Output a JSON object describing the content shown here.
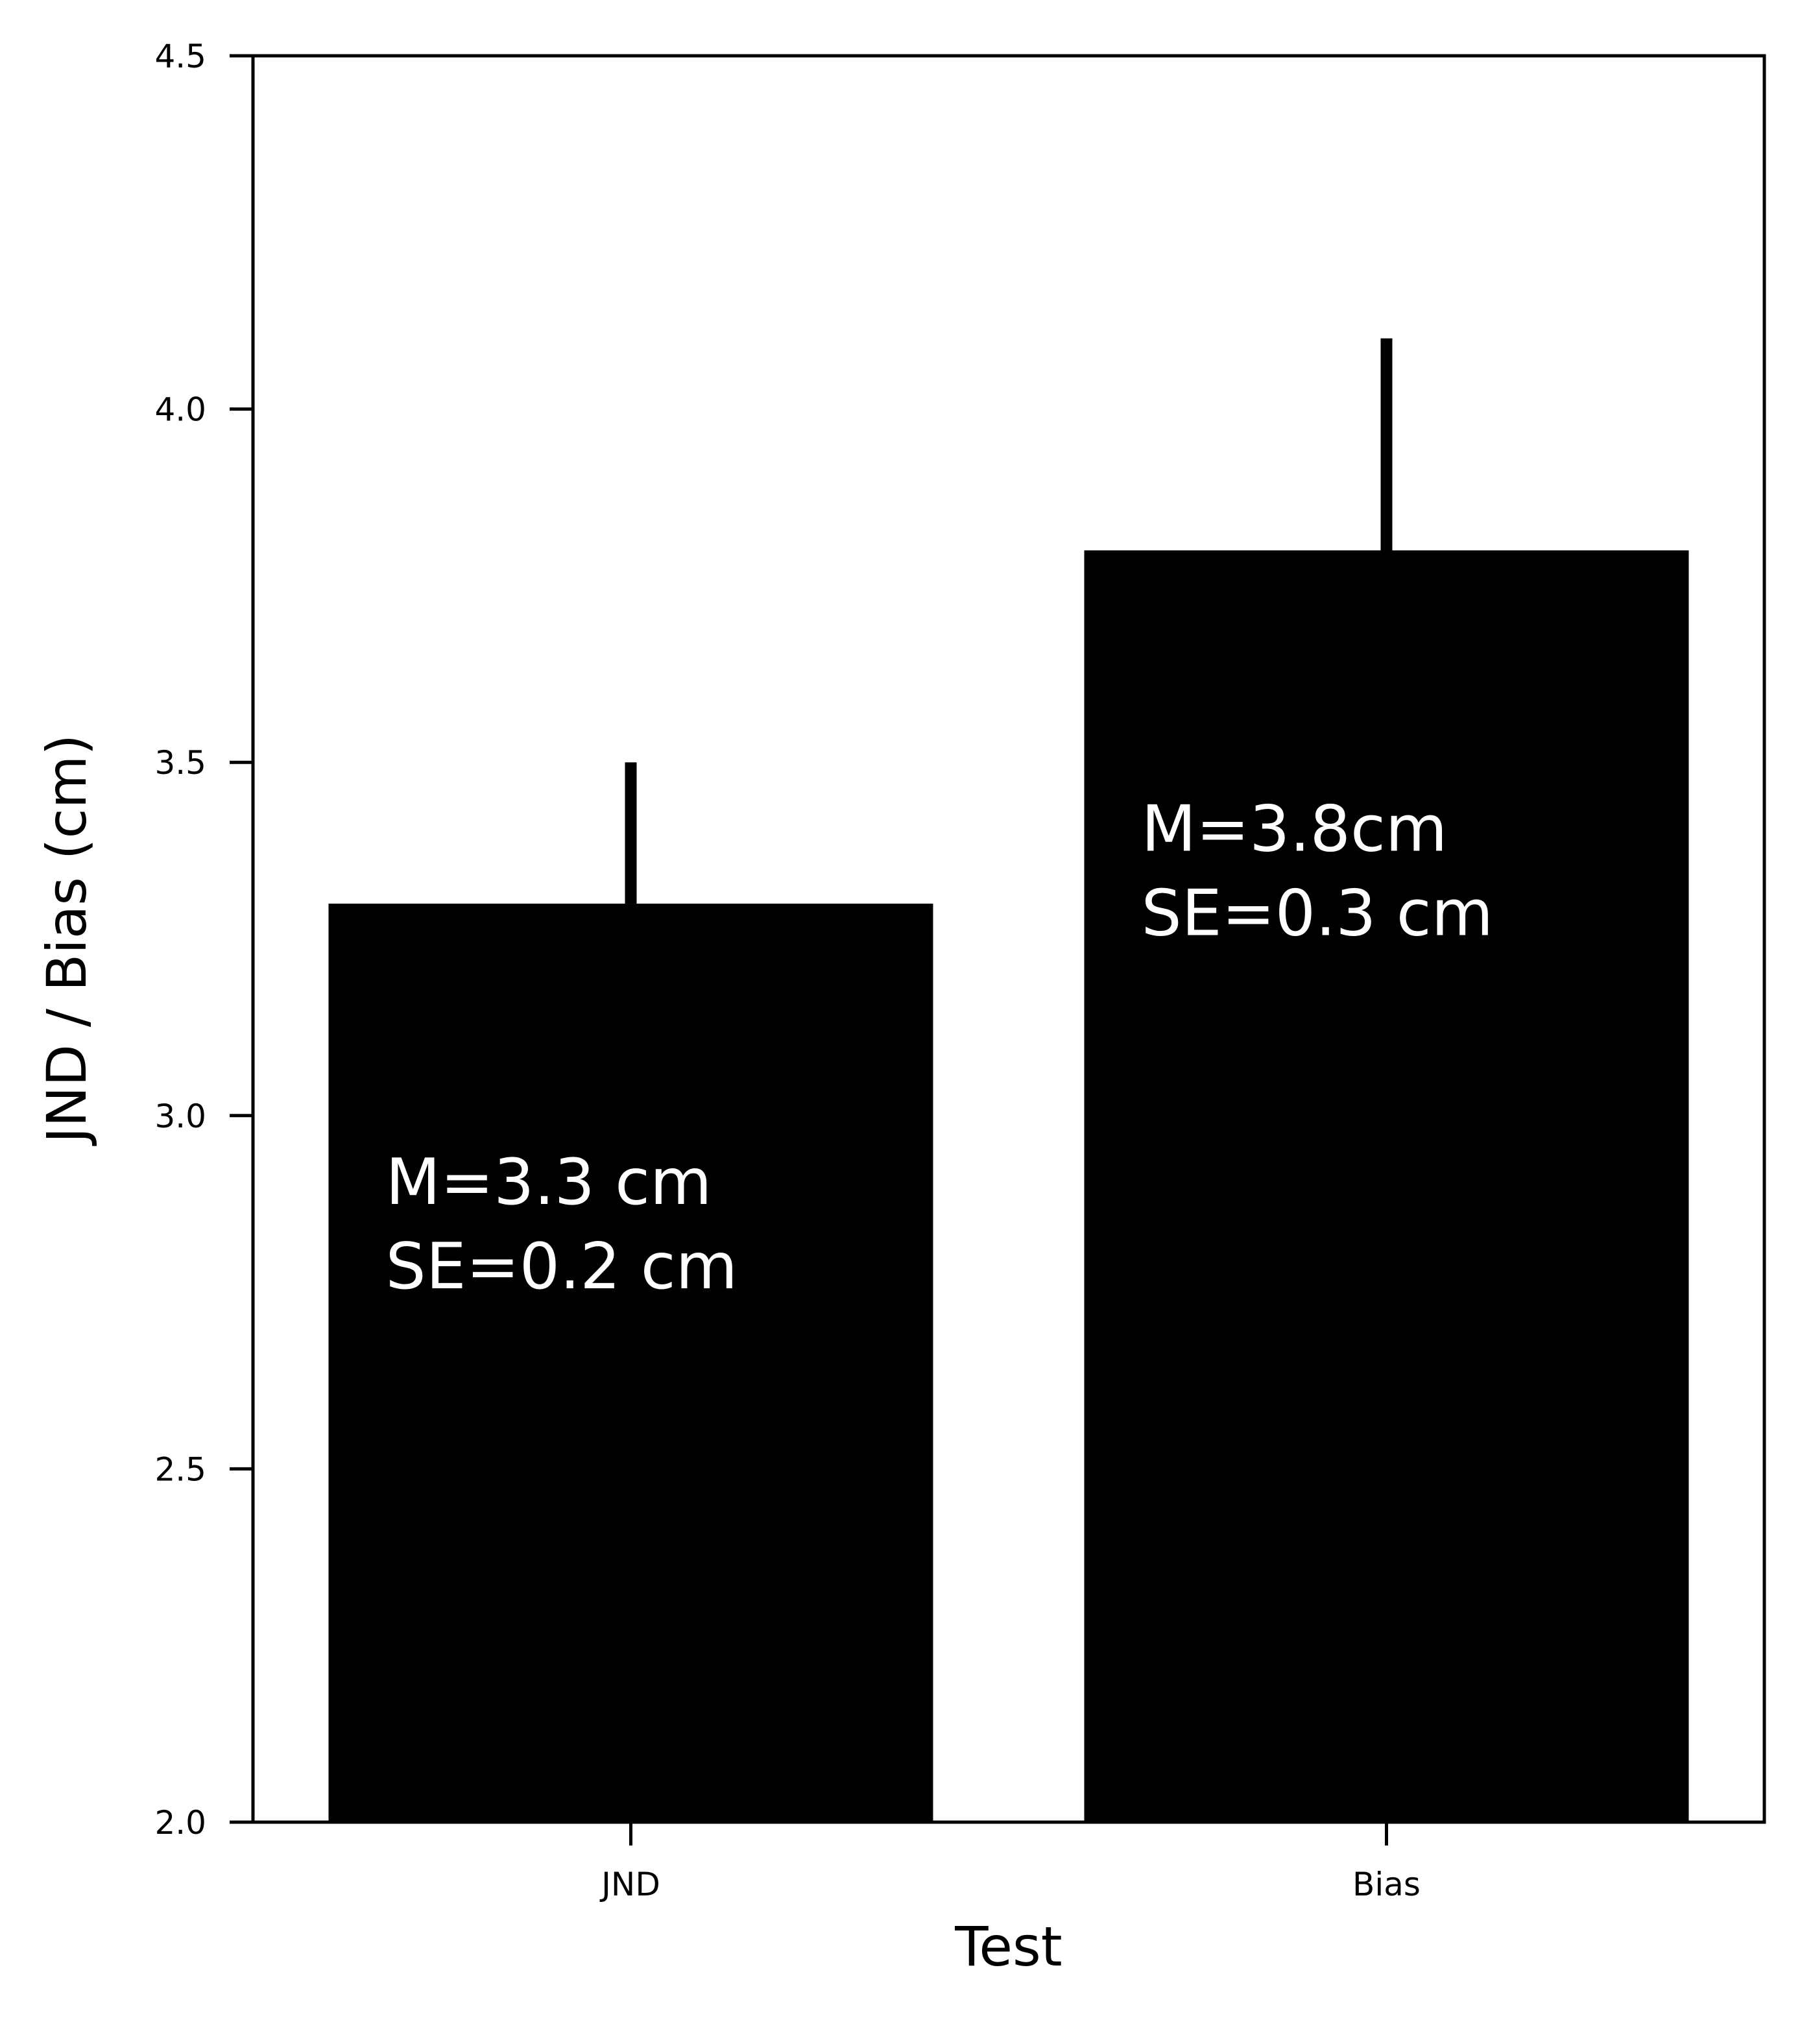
{
  "chart_data": {
    "type": "bar",
    "categories": [
      "JND",
      "Bias"
    ],
    "values": [
      3.3,
      3.8
    ],
    "errors": [
      0.2,
      0.3
    ],
    "error_bar_style": "upper-only",
    "xlabel": "Test",
    "ylabel": "JND / Bias (cm)",
    "ylim": [
      2.0,
      4.5
    ],
    "yticks": [
      "2.0",
      "2.5",
      "3.0",
      "3.5",
      "4.0",
      "4.5"
    ],
    "grid": false,
    "annotations": [
      {
        "category": "JND",
        "lines": [
          "M=3.3 cm",
          "SE=0.2 cm"
        ]
      },
      {
        "category": "Bias",
        "lines": [
          "M=3.8cm",
          "SE=0.3 cm"
        ]
      }
    ],
    "colors": {
      "bar": "#000000",
      "error_bar": "#000000",
      "annotation_text": "#ffffff",
      "axes": "#000000",
      "background": "#ffffff"
    }
  }
}
